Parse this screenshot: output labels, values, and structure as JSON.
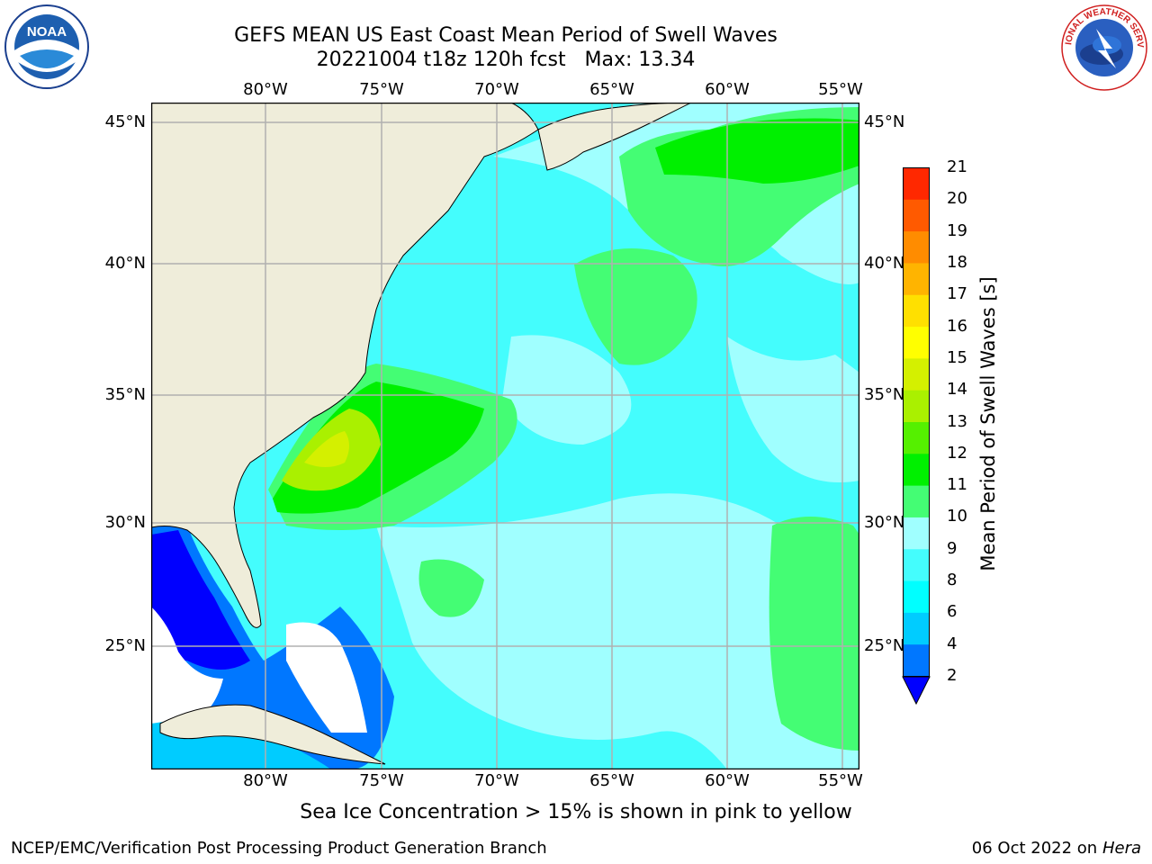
{
  "header": {
    "title_line1": "GEFS MEAN US East Coast Mean Period of Swell Waves",
    "title_line2": "20221004 t18z 120h fcst   Max: 13.34"
  },
  "logos": {
    "left": {
      "icon": "noaa-logo-icon",
      "text": "NOAA"
    },
    "right": {
      "icon": "nws-logo-icon",
      "text": "NATIONAL WEATHER SERVICE"
    }
  },
  "map": {
    "lon_ticks_top": [
      "80°W",
      "75°W",
      "70°W",
      "65°W",
      "60°W",
      "55°W"
    ],
    "lon_ticks_bottom": [
      "80°W",
      "75°W",
      "70°W",
      "65°W",
      "60°W",
      "55°W"
    ],
    "lat_ticks_left": [
      "45°N",
      "40°N",
      "35°N",
      "30°N",
      "25°N"
    ],
    "lat_ticks_right": [
      "45°N",
      "40°N",
      "35°N",
      "30°N",
      "25°N"
    ],
    "land_color": "#efedda",
    "grid_color": "#b0b0b0",
    "ocean_dominant_color": "#44fdfd"
  },
  "colorbar": {
    "label": "Mean Period of Swell Waves [s]",
    "ticks": [
      "2",
      "4",
      "6",
      "8",
      "9",
      "10",
      "11",
      "12",
      "13",
      "14",
      "15",
      "16",
      "17",
      "18",
      "19",
      "20",
      "21"
    ],
    "colors": [
      "#0077ff",
      "#00ccff",
      "#00ffff",
      "#44fdfd",
      "#a0ffff",
      "#44fd74",
      "#00f000",
      "#55f000",
      "#aaf000",
      "#d4f000",
      "#ffff00",
      "#ffe000",
      "#ffb400",
      "#ff8c00",
      "#ff5a00",
      "#ff2800",
      "#ff0000"
    ],
    "under_color": "#0000ff"
  },
  "caption": "Sea Ice Concentration > 15% is shown in pink to yellow",
  "footer": {
    "left": "NCEP/EMC/Verification Post Processing Product Generation Branch",
    "right_date": "06 Oct 2022 on ",
    "right_host": "Hera"
  }
}
